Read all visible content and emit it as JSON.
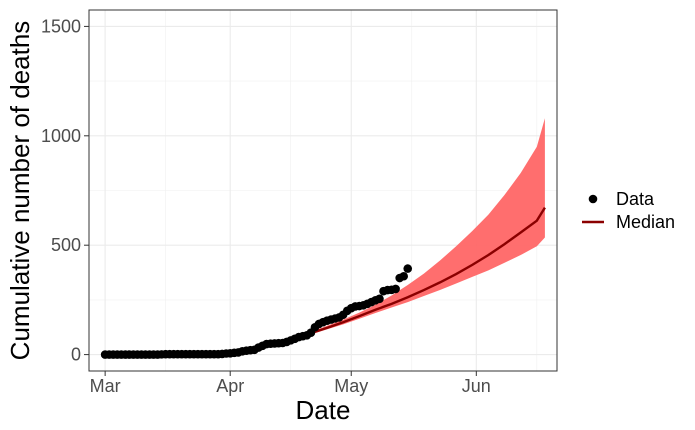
{
  "chart_data": {
    "type": "line",
    "xlabel": "Date",
    "ylabel": "Cumulative number of deaths",
    "x_axis": {
      "type": "date",
      "range": [
        "2020-02-26",
        "2020-06-21"
      ]
    },
    "ylim": [
      -75,
      1575
    ],
    "x_ticks": [
      {
        "date": "2020-03-01",
        "label": "Mar"
      },
      {
        "date": "2020-04-01",
        "label": "Apr"
      },
      {
        "date": "2020-05-01",
        "label": "May"
      },
      {
        "date": "2020-06-01",
        "label": "Jun"
      }
    ],
    "y_ticks": [
      0,
      500,
      1000,
      1500
    ],
    "grid": true,
    "legend": {
      "position": "right",
      "items": [
        {
          "label": "Data",
          "kind": "point"
        },
        {
          "label": "Median",
          "kind": "line"
        }
      ]
    },
    "colors": {
      "data": "#000000",
      "median": "#8b0000",
      "band": "#ff6666"
    },
    "series": [
      {
        "name": "Data",
        "type": "scatter",
        "points": [
          [
            "2020-03-01",
            0
          ],
          [
            "2020-03-02",
            0
          ],
          [
            "2020-03-03",
            0
          ],
          [
            "2020-03-04",
            0
          ],
          [
            "2020-03-05",
            0
          ],
          [
            "2020-03-06",
            0
          ],
          [
            "2020-03-07",
            0
          ],
          [
            "2020-03-08",
            0
          ],
          [
            "2020-03-09",
            0
          ],
          [
            "2020-03-10",
            0
          ],
          [
            "2020-03-11",
            0
          ],
          [
            "2020-03-12",
            0
          ],
          [
            "2020-03-13",
            0
          ],
          [
            "2020-03-14",
            0
          ],
          [
            "2020-03-15",
            1
          ],
          [
            "2020-03-16",
            2
          ],
          [
            "2020-03-17",
            2
          ],
          [
            "2020-03-18",
            2
          ],
          [
            "2020-03-19",
            2
          ],
          [
            "2020-03-20",
            2
          ],
          [
            "2020-03-21",
            2
          ],
          [
            "2020-03-22",
            2
          ],
          [
            "2020-03-23",
            2
          ],
          [
            "2020-03-24",
            2
          ],
          [
            "2020-03-25",
            2
          ],
          [
            "2020-03-26",
            2
          ],
          [
            "2020-03-27",
            2
          ],
          [
            "2020-03-28",
            2
          ],
          [
            "2020-03-29",
            2
          ],
          [
            "2020-03-30",
            3
          ],
          [
            "2020-03-31",
            5
          ],
          [
            "2020-04-01",
            6
          ],
          [
            "2020-04-02",
            8
          ],
          [
            "2020-04-03",
            10
          ],
          [
            "2020-04-04",
            15
          ],
          [
            "2020-04-05",
            18
          ],
          [
            "2020-04-06",
            20
          ],
          [
            "2020-04-07",
            22
          ],
          [
            "2020-04-08",
            32
          ],
          [
            "2020-04-09",
            40
          ],
          [
            "2020-04-10",
            48
          ],
          [
            "2020-04-11",
            50
          ],
          [
            "2020-04-12",
            51
          ],
          [
            "2020-04-13",
            52
          ],
          [
            "2020-04-14",
            53
          ],
          [
            "2020-04-15",
            58
          ],
          [
            "2020-04-16",
            65
          ],
          [
            "2020-04-17",
            72
          ],
          [
            "2020-04-18",
            80
          ],
          [
            "2020-04-19",
            84
          ],
          [
            "2020-04-20",
            88
          ],
          [
            "2020-04-21",
            100
          ],
          [
            "2020-04-22",
            125
          ],
          [
            "2020-04-23",
            140
          ],
          [
            "2020-04-24",
            148
          ],
          [
            "2020-04-25",
            155
          ],
          [
            "2020-04-26",
            160
          ],
          [
            "2020-04-27",
            165
          ],
          [
            "2020-04-28",
            170
          ],
          [
            "2020-04-29",
            182
          ],
          [
            "2020-04-30",
            200
          ],
          [
            "2020-05-01",
            212
          ],
          [
            "2020-05-02",
            220
          ],
          [
            "2020-05-03",
            222
          ],
          [
            "2020-05-04",
            225
          ],
          [
            "2020-05-05",
            232
          ],
          [
            "2020-05-06",
            240
          ],
          [
            "2020-05-07",
            248
          ],
          [
            "2020-05-08",
            255
          ],
          [
            "2020-05-09",
            290
          ],
          [
            "2020-05-10",
            295
          ],
          [
            "2020-05-11",
            296
          ],
          [
            "2020-05-12",
            300
          ],
          [
            "2020-05-13",
            350
          ],
          [
            "2020-05-14",
            358
          ],
          [
            "2020-05-15",
            393
          ]
        ]
      },
      {
        "name": "Median",
        "type": "line",
        "points": [
          [
            "2020-04-17",
            75
          ],
          [
            "2020-04-21",
            98
          ],
          [
            "2020-04-25",
            122
          ],
          [
            "2020-04-29",
            148
          ],
          [
            "2020-05-03",
            176
          ],
          [
            "2020-05-07",
            205
          ],
          [
            "2020-05-11",
            232
          ],
          [
            "2020-05-15",
            262
          ],
          [
            "2020-05-19",
            295
          ],
          [
            "2020-05-23",
            330
          ],
          [
            "2020-05-27",
            368
          ],
          [
            "2020-05-31",
            410
          ],
          [
            "2020-06-04",
            455
          ],
          [
            "2020-06-08",
            505
          ],
          [
            "2020-06-12",
            558
          ],
          [
            "2020-06-16",
            612
          ],
          [
            "2020-06-18",
            672
          ]
        ]
      },
      {
        "type": "area",
        "points": [
          [
            "2020-04-17",
            72,
            82
          ],
          [
            "2020-04-21",
            92,
            104
          ],
          [
            "2020-04-25",
            115,
            132
          ],
          [
            "2020-04-29",
            138,
            160
          ],
          [
            "2020-05-03",
            164,
            192
          ],
          [
            "2020-05-07",
            190,
            228
          ],
          [
            "2020-05-11",
            215,
            270
          ],
          [
            "2020-05-15",
            240,
            318
          ],
          [
            "2020-05-19",
            268,
            370
          ],
          [
            "2020-05-23",
            295,
            430
          ],
          [
            "2020-05-27",
            325,
            495
          ],
          [
            "2020-05-31",
            355,
            565
          ],
          [
            "2020-06-04",
            385,
            640
          ],
          [
            "2020-06-08",
            420,
            730
          ],
          [
            "2020-06-12",
            455,
            830
          ],
          [
            "2020-06-16",
            495,
            950
          ],
          [
            "2020-06-18",
            535,
            1080
          ]
        ]
      }
    ]
  }
}
